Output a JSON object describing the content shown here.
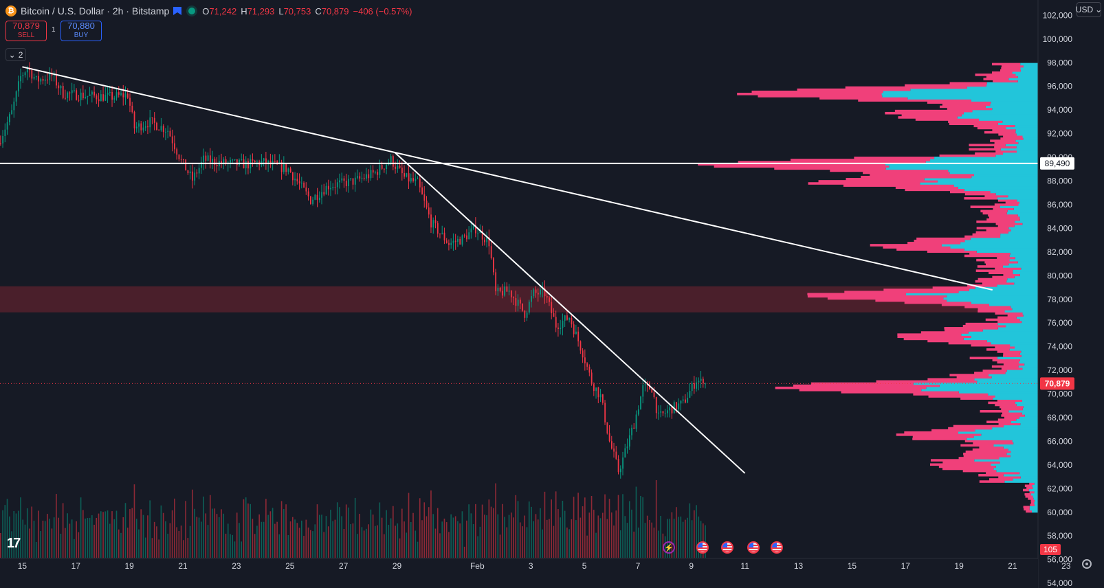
{
  "header": {
    "symbol_title": "Bitcoin / U.S. Dollar · 2h · Bitstamp",
    "ohlc": [
      {
        "key": "O",
        "value": "71,242"
      },
      {
        "key": "H",
        "value": "71,293"
      },
      {
        "key": "L",
        "value": "70,753"
      },
      {
        "key": "C",
        "value": "70,879"
      }
    ],
    "change": "−406 (−0.57%)",
    "sell_price": "70,879",
    "sell_label": "SELL",
    "buy_price": "70,880",
    "buy_label": "BUY",
    "spread": "1",
    "collapsed_indicators": "2",
    "currency": "USD"
  },
  "icons": [
    "bitcoin-icon",
    "flag-icon",
    "market-status-icon",
    "chevron-down-icon",
    "tradingview-logo-icon",
    "settings-gear-icon",
    "us-flag-icon",
    "lightning-icon"
  ],
  "colors": {
    "background": "#161a25",
    "up": "#089981",
    "down": "#f23645",
    "profile_up": "#22c5da",
    "profile_down": "#f0407a",
    "zone": "#4a1f2b",
    "line": "#ffffff"
  },
  "chart_data": {
    "type": "candlestick",
    "interval": "2h",
    "x_tick_labels": [
      "15",
      "17",
      "19",
      "21",
      "23",
      "25",
      "27",
      "29",
      "Feb",
      "3",
      "5",
      "7",
      "9",
      "11",
      "13",
      "15",
      "17",
      "19",
      "21",
      "23"
    ],
    "x_tick_dates": [
      "2026-01-15",
      "2026-01-17",
      "2026-01-19",
      "2026-01-21",
      "2026-01-23",
      "2026-01-25",
      "2026-01-27",
      "2026-01-29",
      "2026-02-01",
      "2026-02-03",
      "2026-02-05",
      "2026-02-07",
      "2026-02-09",
      "2026-02-11",
      "2026-02-13",
      "2026-02-15",
      "2026-02-17",
      "2026-02-19",
      "2026-02-21",
      "2026-02-23"
    ],
    "y_tick_labels": [
      "102,000",
      "100,000",
      "98,000",
      "96,000",
      "94,000",
      "92,000",
      "90,000",
      "88,000",
      "86,000",
      "84,000",
      "82,000",
      "80,000",
      "78,000",
      "76,000",
      "74,000",
      "72,000",
      "70,000",
      "68,000",
      "66,000",
      "64,000",
      "62,000",
      "60,000",
      "58,000",
      "56,000",
      "54,000"
    ],
    "ylim": [
      53600,
      103300
    ],
    "xlim": [
      "2026-01-14T04:00",
      "2026-02-24T10:00"
    ],
    "price_path": [
      [
        "2026-01-14T04:00",
        91200
      ],
      [
        "2026-01-14T16:00",
        93800
      ],
      [
        "2026-01-15T00:00",
        96800
      ],
      [
        "2026-01-15T06:00",
        97600
      ],
      [
        "2026-01-15T14:00",
        96500
      ],
      [
        "2026-01-16T04:00",
        96900
      ],
      [
        "2026-01-16T14:00",
        95400
      ],
      [
        "2026-01-17T12:00",
        95200
      ],
      [
        "2026-01-18T10:00",
        95100
      ],
      [
        "2026-01-19T00:00",
        95300
      ],
      [
        "2026-01-19T06:00",
        92500
      ],
      [
        "2026-01-19T20:00",
        93000
      ],
      [
        "2026-01-20T12:00",
        92300
      ],
      [
        "2026-01-21T00:00",
        89700
      ],
      [
        "2026-01-21T10:00",
        88100
      ],
      [
        "2026-01-21T20:00",
        89800
      ],
      [
        "2026-01-22T14:00",
        89500
      ],
      [
        "2026-01-23T12:00",
        89400
      ],
      [
        "2026-01-24T00:00",
        89600
      ],
      [
        "2026-01-25T00:00",
        89000
      ],
      [
        "2026-01-25T20:00",
        86400
      ],
      [
        "2026-01-26T12:00",
        87600
      ],
      [
        "2026-01-27T12:00",
        88000
      ],
      [
        "2026-01-28T06:00",
        88700
      ],
      [
        "2026-01-28T20:00",
        89800
      ],
      [
        "2026-01-29T08:00",
        88300
      ],
      [
        "2026-01-29T20:00",
        87800
      ],
      [
        "2026-01-30T08:00",
        84500
      ],
      [
        "2026-01-31T00:00",
        82700
      ],
      [
        "2026-01-31T12:00",
        83100
      ],
      [
        "2026-02-01T00:00",
        84000
      ],
      [
        "2026-02-01T12:00",
        82800
      ],
      [
        "2026-02-01T18:00",
        78500
      ],
      [
        "2026-02-02T06:00",
        78700
      ],
      [
        "2026-02-02T20:00",
        76800
      ],
      [
        "2026-02-03T04:00",
        78500
      ],
      [
        "2026-02-03T14:00",
        78500
      ],
      [
        "2026-02-04T00:00",
        75800
      ],
      [
        "2026-02-04T12:00",
        76500
      ],
      [
        "2026-02-05T00:00",
        73500
      ],
      [
        "2026-02-05T08:00",
        71000
      ],
      [
        "2026-02-05T16:00",
        69800
      ],
      [
        "2026-02-06T00:00",
        66000
      ],
      [
        "2026-02-06T08:00",
        63500
      ],
      [
        "2026-02-06T12:00",
        64500
      ],
      [
        "2026-02-06T22:00",
        67500
      ],
      [
        "2026-02-07T06:00",
        70500
      ],
      [
        "2026-02-07T14:00",
        70500
      ],
      [
        "2026-02-07T20:00",
        68000
      ],
      [
        "2026-02-08T08:00",
        68800
      ],
      [
        "2026-02-08T18:00",
        69200
      ],
      [
        "2026-02-09T06:00",
        71200
      ],
      [
        "2026-02-09T12:00",
        70879
      ]
    ],
    "last_price": 70879,
    "last_price_label": "70,879",
    "drawings": {
      "horizontal_line": {
        "price": 89490,
        "label": "89,490"
      },
      "trendlines": [
        {
          "from": [
            "2026-01-15T00:00",
            97650
          ],
          "to": [
            "2026-02-20T06:00",
            78800
          ]
        },
        {
          "from": [
            "2026-01-28T22:00",
            90420
          ],
          "to": [
            "2026-02-11T00:00",
            63300
          ]
        }
      ],
      "zone": {
        "from_price": 76900,
        "to_price": 79100
      }
    },
    "volume": {
      "last_value_label": "105"
    }
  }
}
